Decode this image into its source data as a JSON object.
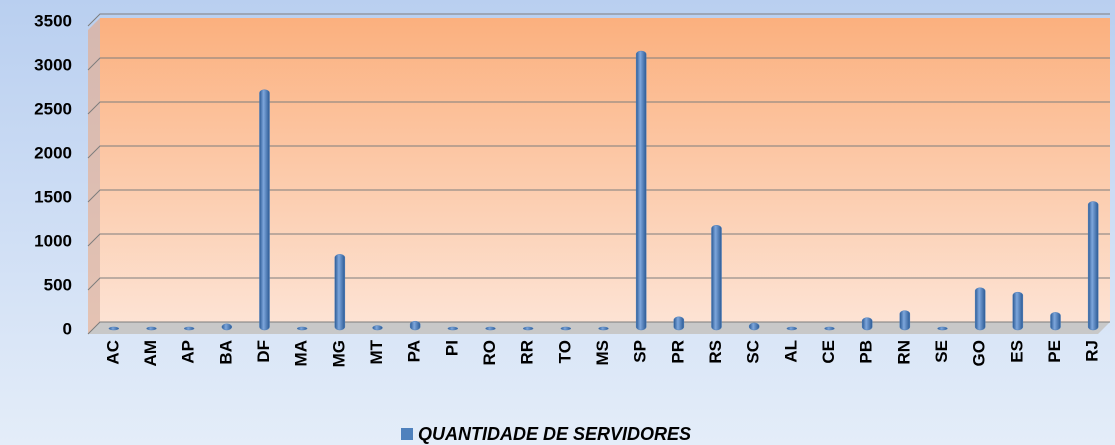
{
  "chart_data": {
    "type": "bar",
    "categories": [
      "AC",
      "AM",
      "AP",
      "BA",
      "DF",
      "MA",
      "MG",
      "MT",
      "PA",
      "PI",
      "RO",
      "RR",
      "TO",
      "MS",
      "SP",
      "PR",
      "RS",
      "SC",
      "AL",
      "CE",
      "PB",
      "RN",
      "SE",
      "GO",
      "ES",
      "PE",
      "RJ"
    ],
    "series": [
      {
        "name": "QUANTIDADE DE SERVIDORES",
        "color": "#4f81bd",
        "values": [
          5,
          2,
          3,
          70,
          2730,
          3,
          860,
          50,
          100,
          3,
          3,
          2,
          3,
          5,
          3170,
          150,
          1190,
          80,
          3,
          3,
          140,
          220,
          3,
          480,
          430,
          200,
          1460
        ]
      }
    ],
    "ylim": [
      0,
      3500
    ],
    "yticks": [
      0,
      500,
      1000,
      1500,
      2000,
      2500,
      3000,
      3500
    ],
    "grid": true,
    "legend": "bottom"
  }
}
